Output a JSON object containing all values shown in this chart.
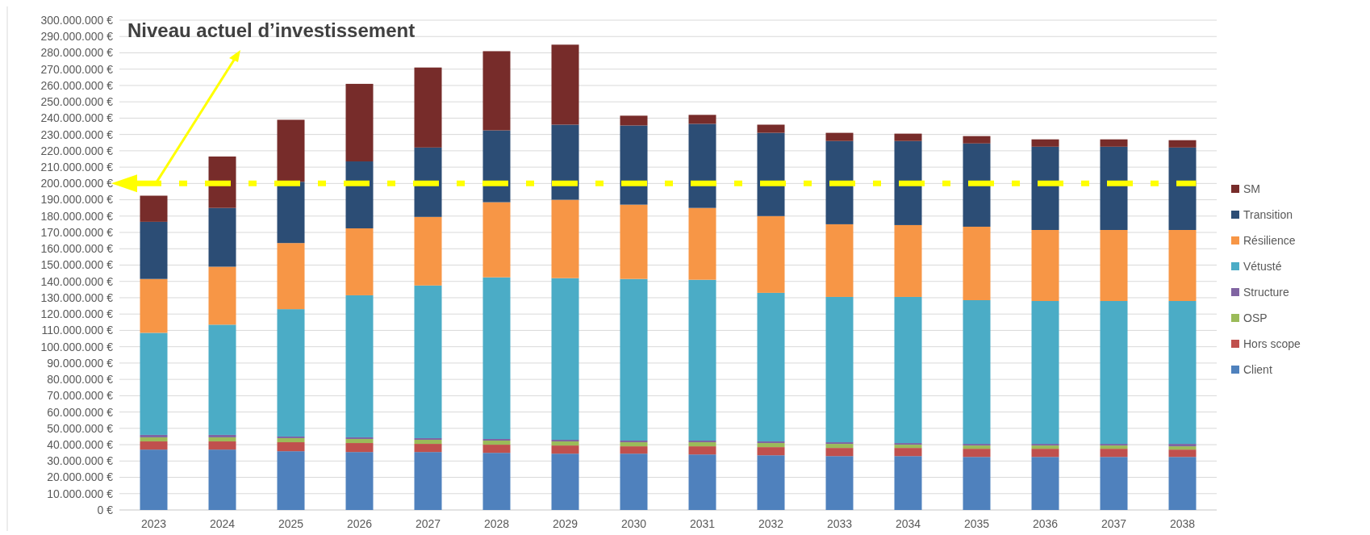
{
  "chart_data": {
    "type": "bar",
    "stacked": true,
    "categories": [
      "2023",
      "2024",
      "2025",
      "2026",
      "2027",
      "2028",
      "2029",
      "2030",
      "2031",
      "2032",
      "2033",
      "2034",
      "2035",
      "2036",
      "2037",
      "2038"
    ],
    "series": [
      {
        "name": "Client",
        "color": "#4f81bd",
        "values": [
          37000000,
          37000000,
          36000000,
          35500000,
          35500000,
          35000000,
          34500000,
          34500000,
          34000000,
          33500000,
          33000000,
          33000000,
          32500000,
          32500000,
          32500000,
          32500000
        ]
      },
      {
        "name": "Hors scope",
        "color": "#c0504d",
        "values": [
          5000000,
          5000000,
          5500000,
          5500000,
          5000000,
          5000000,
          5000000,
          4500000,
          5000000,
          5000000,
          5000000,
          5000000,
          5000000,
          5000000,
          5000000,
          4500000
        ]
      },
      {
        "name": "OSP",
        "color": "#9bbb59",
        "values": [
          2500000,
          2500000,
          2500000,
          2500000,
          2500000,
          2500000,
          2500000,
          2500000,
          2500000,
          2500000,
          2500000,
          2000000,
          2000000,
          2000000,
          2000000,
          2000000
        ]
      },
      {
        "name": "Structure",
        "color": "#8064a2",
        "values": [
          1500000,
          1500000,
          1000000,
          1000000,
          1000000,
          1000000,
          1000000,
          1000000,
          1000000,
          1000000,
          1000000,
          1000000,
          1000000,
          1000000,
          1000000,
          1500000
        ]
      },
      {
        "name": "Vétusté",
        "color": "#4bacc6",
        "values": [
          62500000,
          67500000,
          78000000,
          87000000,
          93500000,
          99000000,
          99000000,
          99000000,
          98500000,
          91000000,
          89000000,
          89500000,
          88000000,
          87500000,
          87500000,
          87500000
        ]
      },
      {
        "name": "Résilience",
        "color": "#f79646",
        "values": [
          33000000,
          35500000,
          40500000,
          41000000,
          42000000,
          46000000,
          48000000,
          45500000,
          44000000,
          47000000,
          44500000,
          44000000,
          45000000,
          43500000,
          43500000,
          43500000
        ]
      },
      {
        "name": "Transition",
        "color": "#2c4d75",
        "values": [
          35000000,
          36000000,
          37500000,
          41000000,
          42500000,
          44000000,
          46000000,
          48500000,
          51500000,
          51000000,
          51000000,
          51500000,
          51000000,
          51000000,
          51000000,
          50500000
        ]
      },
      {
        "name": "SM",
        "color": "#772c2a",
        "values": [
          16000000,
          31500000,
          38000000,
          47500000,
          49000000,
          48500000,
          49000000,
          6000000,
          5500000,
          5000000,
          5000000,
          4500000,
          4500000,
          4500000,
          4500000,
          4500000
        ]
      }
    ],
    "ylim": [
      0,
      300000000
    ],
    "yticks": [
      {
        "value": 0,
        "label": "0 €"
      },
      {
        "value": 10000000,
        "label": "10.000.000 €"
      },
      {
        "value": 20000000,
        "label": "20.000.000 €"
      },
      {
        "value": 30000000,
        "label": "30.000.000 €"
      },
      {
        "value": 40000000,
        "label": "40.000.000 €"
      },
      {
        "value": 50000000,
        "label": "50.000.000 €"
      },
      {
        "value": 60000000,
        "label": "60.000.000 €"
      },
      {
        "value": 70000000,
        "label": "70.000.000 €"
      },
      {
        "value": 80000000,
        "label": "80.000.000 €"
      },
      {
        "value": 90000000,
        "label": "90.000.000 €"
      },
      {
        "value": 100000000,
        "label": "100.000.000 €"
      },
      {
        "value": 110000000,
        "label": "110.000.000 €"
      },
      {
        "value": 120000000,
        "label": "120.000.000 €"
      },
      {
        "value": 130000000,
        "label": "130.000.000 €"
      },
      {
        "value": 140000000,
        "label": "140.000.000 €"
      },
      {
        "value": 150000000,
        "label": "150.000.000 €"
      },
      {
        "value": 160000000,
        "label": "160.000.000 €"
      },
      {
        "value": 170000000,
        "label": "170.000.000 €"
      },
      {
        "value": 180000000,
        "label": "180.000.000 €"
      },
      {
        "value": 190000000,
        "label": "190.000.000 €"
      },
      {
        "value": 200000000,
        "label": "200.000.000 €"
      },
      {
        "value": 210000000,
        "label": "210.000.000 €"
      },
      {
        "value": 220000000,
        "label": "220.000.000 €"
      },
      {
        "value": 230000000,
        "label": "230.000.000 €"
      },
      {
        "value": 240000000,
        "label": "240.000.000 €"
      },
      {
        "value": 250000000,
        "label": "250.000.000 €"
      },
      {
        "value": 260000000,
        "label": "260.000.000 €"
      },
      {
        "value": 270000000,
        "label": "270.000.000 €"
      },
      {
        "value": 280000000,
        "label": "280.000.000 €"
      },
      {
        "value": 290000000,
        "label": "290.000.000 €"
      },
      {
        "value": 300000000,
        "label": "300.000.000 €"
      }
    ],
    "grid": "y",
    "legend": "right",
    "ref_lines": [
      {
        "axis": "y",
        "value": 200000000,
        "label": "Niveau actuel d’investissement",
        "color": "#ffff00",
        "line_style": "dashdot"
      }
    ]
  }
}
